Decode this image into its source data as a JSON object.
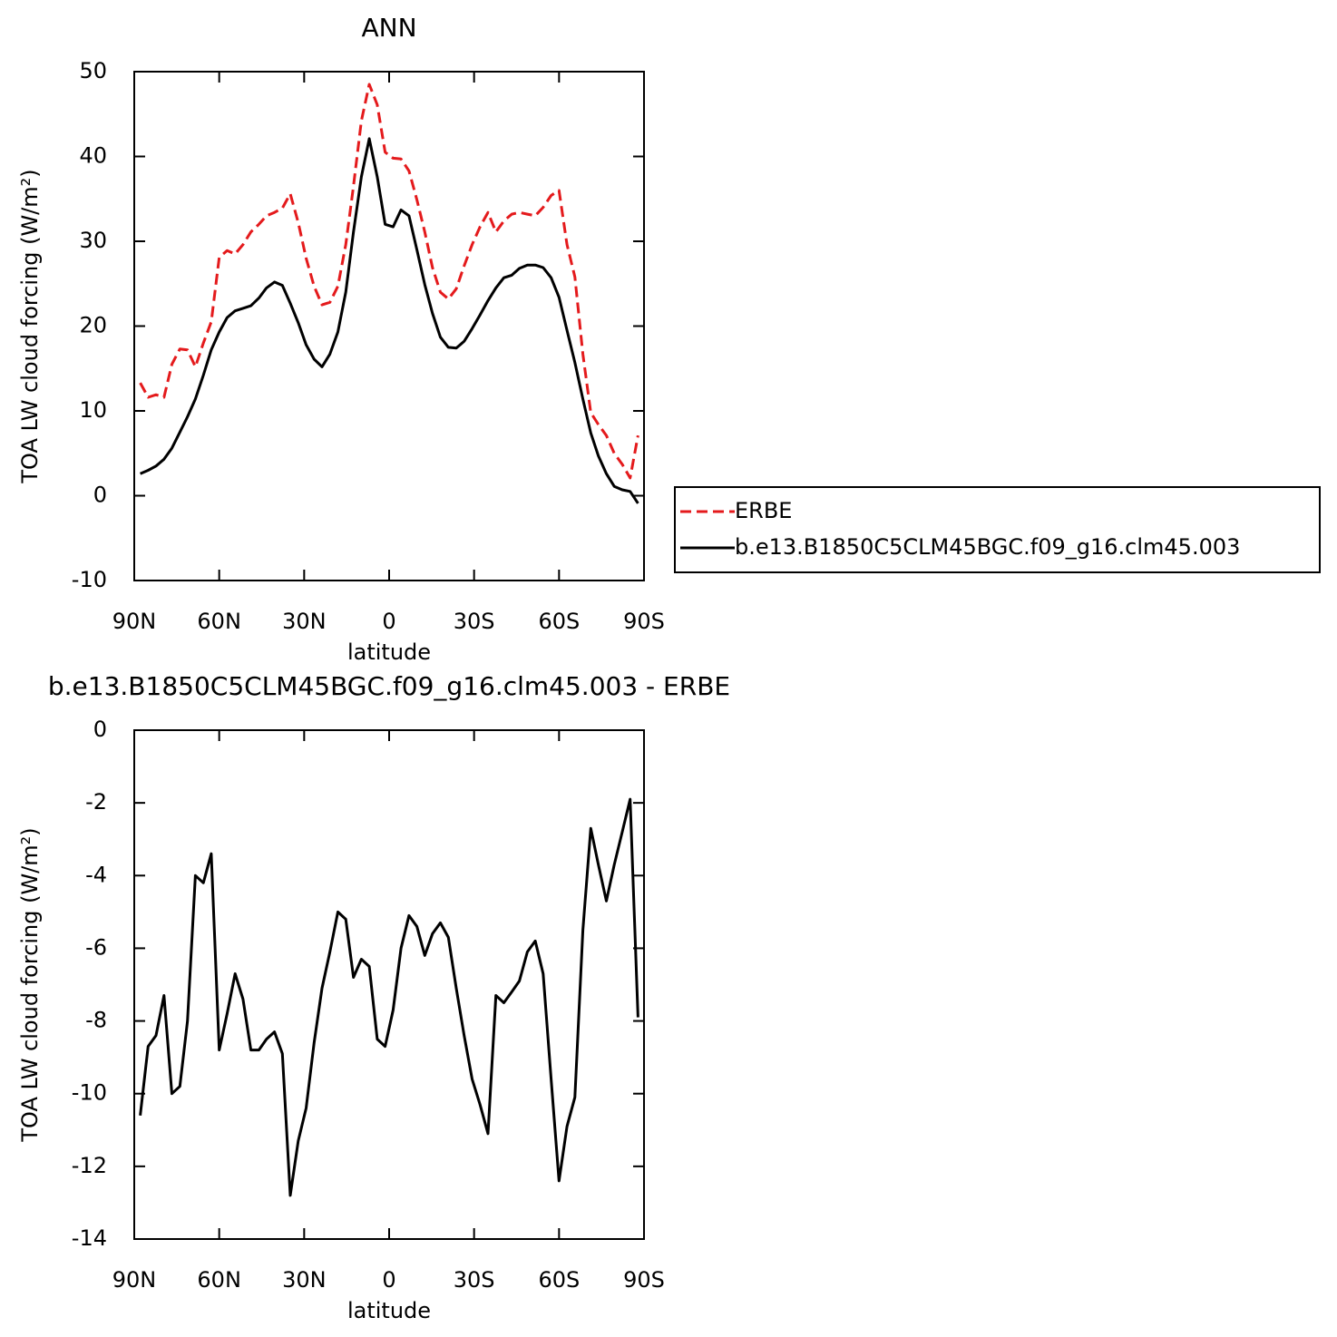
{
  "chart_data": [
    {
      "type": "line",
      "title": "ANN",
      "xlabel": "latitude",
      "ylabel": "TOA LW cloud forcing (W/m²)",
      "x": [
        87.9,
        85.1,
        82.3,
        79.5,
        76.7,
        73.9,
        71.2,
        68.4,
        65.6,
        62.8,
        60.0,
        57.2,
        54.4,
        51.6,
        48.8,
        46.0,
        43.3,
        40.5,
        37.7,
        34.9,
        32.1,
        29.3,
        26.5,
        23.7,
        20.9,
        18.1,
        15.3,
        12.6,
        9.8,
        7.0,
        4.2,
        1.4,
        -1.4,
        -4.2,
        -7.0,
        -9.8,
        -12.6,
        -15.3,
        -18.1,
        -20.9,
        -23.7,
        -26.5,
        -29.3,
        -32.1,
        -34.9,
        -37.7,
        -40.5,
        -43.3,
        -46.0,
        -48.8,
        -51.6,
        -54.4,
        -57.2,
        -60.0,
        -62.8,
        -65.6,
        -68.4,
        -71.2,
        -73.9,
        -76.7,
        -79.5,
        -82.3,
        -85.1,
        -87.9
      ],
      "series": [
        {
          "name": "ERBE",
          "color": "#e41a1c",
          "line_style": "dashed",
          "values": [
            13.3,
            11.6,
            11.9,
            11.6,
            15.5,
            17.3,
            17.2,
            15.2,
            18.0,
            20.5,
            28.1,
            28.9,
            28.5,
            29.6,
            31.1,
            32.0,
            33.0,
            33.4,
            33.9,
            35.6,
            32.2,
            28.0,
            24.7,
            22.5,
            22.8,
            24.7,
            29.6,
            36.5,
            44.2,
            48.5,
            46.1,
            40.5,
            39.8,
            39.7,
            38.3,
            34.9,
            31.1,
            26.9,
            24.0,
            23.2,
            24.4,
            27.1,
            29.6,
            31.7,
            33.4,
            31.1,
            32.4,
            33.2,
            33.4,
            33.2,
            33.0,
            34.0,
            35.4,
            36.0,
            29.6,
            25.8,
            16.7,
            9.8,
            8.4,
            7.1,
            5.0,
            3.7,
            2.1,
            7.1
          ]
        },
        {
          "name": "b.e13.B1850C5CLM45BGC.f09_g16.clm45.003",
          "color": "#000000",
          "line_style": "solid",
          "values": [
            2.6,
            3.0,
            3.5,
            4.3,
            5.6,
            7.5,
            9.3,
            11.4,
            14.2,
            17.2,
            19.3,
            21.0,
            21.8,
            22.1,
            22.4,
            23.3,
            24.5,
            25.2,
            24.8,
            22.7,
            20.4,
            17.8,
            16.1,
            15.2,
            16.7,
            19.3,
            24.0,
            31.1,
            37.6,
            42.1,
            37.6,
            32.0,
            31.7,
            33.7,
            33.0,
            29.0,
            24.9,
            21.5,
            18.7,
            17.5,
            17.4,
            18.2,
            19.7,
            21.3,
            23.0,
            24.5,
            25.7,
            26.0,
            26.8,
            27.2,
            27.2,
            26.9,
            25.7,
            23.4,
            19.5,
            15.7,
            11.4,
            7.4,
            4.7,
            2.6,
            1.1,
            0.7,
            0.5,
            -0.9
          ]
        }
      ],
      "xlim": [
        90,
        -90
      ],
      "xticks": [
        {
          "value": 90,
          "label": "90N"
        },
        {
          "value": 60,
          "label": "60N"
        },
        {
          "value": 30,
          "label": "30N"
        },
        0,
        {
          "value": -30,
          "label": "30S"
        },
        {
          "value": -60,
          "label": "60S"
        },
        {
          "value": -90,
          "label": "90S"
        }
      ],
      "ylim": [
        -10,
        50
      ],
      "yticks": [
        -10,
        0,
        10,
        20,
        30,
        40,
        50
      ],
      "legend": "right"
    },
    {
      "type": "line",
      "title": "b.e13.B1850C5CLM45BGC.f09_g16.clm45.003 - ERBE",
      "xlabel": "latitude",
      "ylabel": "TOA LW cloud forcing (W/m²)",
      "x": [
        87.9,
        85.1,
        82.3,
        79.5,
        76.7,
        73.9,
        71.2,
        68.4,
        65.6,
        62.8,
        60.0,
        57.2,
        54.4,
        51.6,
        48.8,
        46.0,
        43.3,
        40.5,
        37.7,
        34.9,
        32.1,
        29.3,
        26.5,
        23.7,
        20.9,
        18.1,
        15.3,
        12.6,
        9.8,
        7.0,
        4.2,
        1.4,
        -1.4,
        -4.2,
        -7.0,
        -9.8,
        -12.6,
        -15.3,
        -18.1,
        -20.9,
        -23.7,
        -26.5,
        -29.3,
        -32.1,
        -34.9,
        -37.7,
        -40.5,
        -43.3,
        -46.0,
        -48.8,
        -51.6,
        -54.4,
        -57.2,
        -60.0,
        -62.8,
        -65.6,
        -68.4,
        -71.2,
        -73.9,
        -76.7,
        -79.5,
        -82.3,
        -85.1,
        -87.9
      ],
      "series": [
        {
          "color": "#000000",
          "line_style": "solid",
          "values": [
            -10.6,
            -8.7,
            -8.4,
            -7.3,
            -10.0,
            -9.8,
            -8.0,
            -4.0,
            -4.2,
            -3.4,
            -8.8,
            -7.8,
            -6.7,
            -7.4,
            -8.8,
            -8.8,
            -8.5,
            -8.3,
            -8.9,
            -12.8,
            -11.3,
            -10.4,
            -8.6,
            -7.1,
            -6.1,
            -5.0,
            -5.2,
            -6.8,
            -6.3,
            -6.5,
            -8.5,
            -8.7,
            -7.7,
            -6.0,
            -5.1,
            -5.4,
            -6.2,
            -5.6,
            -5.3,
            -5.7,
            -7.1,
            -8.4,
            -9.6,
            -10.3,
            -11.1,
            -7.3,
            -7.5,
            -7.2,
            -6.9,
            -6.1,
            -5.8,
            -6.7,
            -9.6,
            -12.4,
            -10.9,
            -10.1,
            -5.5,
            -2.7,
            -3.7,
            -4.7,
            -3.7,
            -2.8,
            -1.9,
            -7.9
          ]
        }
      ],
      "xlim": [
        90,
        -90
      ],
      "xticks": [
        {
          "value": 90,
          "label": "90N"
        },
        {
          "value": 60,
          "label": "60N"
        },
        {
          "value": 30,
          "label": "30N"
        },
        0,
        {
          "value": -30,
          "label": "30S"
        },
        {
          "value": -60,
          "label": "60S"
        },
        {
          "value": -90,
          "label": "90S"
        }
      ],
      "ylim": [
        -14,
        0
      ],
      "yticks": [
        -14,
        -12,
        -10,
        -8,
        -6,
        -4,
        -2,
        0
      ]
    }
  ]
}
